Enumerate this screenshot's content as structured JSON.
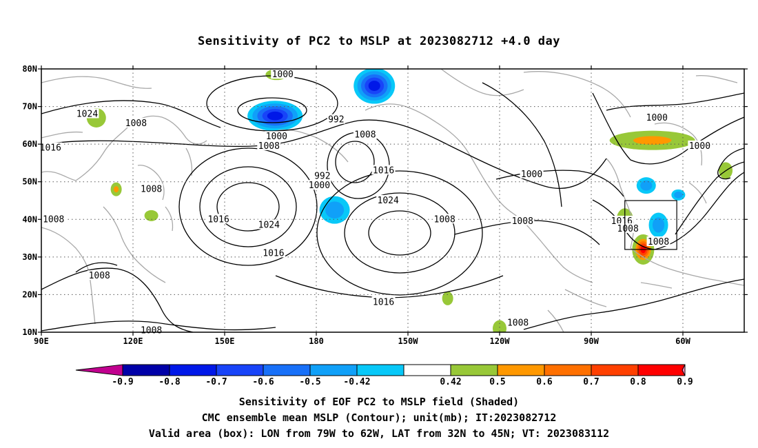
{
  "title": "Sensitivity of PC2 to MSLP at 2023082712 +4.0 day",
  "axes": {
    "lat_labels": [
      "80N",
      "70N",
      "60N",
      "50N",
      "40N",
      "30N",
      "20N",
      "10N"
    ],
    "lon_labels": [
      "90E",
      "120E",
      "150E",
      "180",
      "150W",
      "120W",
      "90W",
      "60W"
    ]
  },
  "contours": {
    "unit": "mb",
    "labels": [
      {
        "text": "1000",
        "lon": 169,
        "lat": 78.5
      },
      {
        "text": "992",
        "lon": -173.5,
        "lat": 66.5
      },
      {
        "text": "1024",
        "lon": 105,
        "lat": 68
      },
      {
        "text": "1008",
        "lon": 121,
        "lat": 65.5
      },
      {
        "text": "1000",
        "lon": 167,
        "lat": 62
      },
      {
        "text": "1008",
        "lon": 164.5,
        "lat": 59.5
      },
      {
        "text": "1016",
        "lon": 93,
        "lat": 59
      },
      {
        "text": "1008",
        "lon": -164,
        "lat": 62.5
      },
      {
        "text": "992",
        "lon": -178,
        "lat": 51.5
      },
      {
        "text": "1000",
        "lon": -179,
        "lat": 49
      },
      {
        "text": "1016",
        "lon": -158,
        "lat": 53
      },
      {
        "text": "1024",
        "lon": -156.5,
        "lat": 45
      },
      {
        "text": "1008",
        "lon": 126,
        "lat": 48
      },
      {
        "text": "1024",
        "lon": 164.5,
        "lat": 38.5
      },
      {
        "text": "1016",
        "lon": 148,
        "lat": 40
      },
      {
        "text": "1008",
        "lon": 94,
        "lat": 40
      },
      {
        "text": "1016",
        "lon": 166,
        "lat": 31
      },
      {
        "text": "1008",
        "lon": 109,
        "lat": 25
      },
      {
        "text": "1016",
        "lon": -158,
        "lat": 18
      },
      {
        "text": "1008",
        "lon": 126,
        "lat": 10.5
      },
      {
        "text": "1008",
        "lon": -138,
        "lat": 40
      },
      {
        "text": "1008",
        "lon": -112.5,
        "lat": 39.5
      },
      {
        "text": "1000",
        "lon": -109.5,
        "lat": 52
      },
      {
        "text": "1008",
        "lon": -114,
        "lat": 12.5
      },
      {
        "text": "1000",
        "lon": -68.5,
        "lat": 67
      },
      {
        "text": "1000",
        "lon": -54.5,
        "lat": 59.5
      },
      {
        "text": "1016",
        "lon": -80,
        "lat": 39.5
      },
      {
        "text": "1008",
        "lon": -78,
        "lat": 37.5
      },
      {
        "text": "1008",
        "lon": -68,
        "lat": 34
      }
    ]
  },
  "shading": {
    "blobs": [
      {
        "lon": 166.5,
        "lat": 67.5,
        "value": -0.8
      },
      {
        "lon": -161,
        "lat": 75.5,
        "value": -0.8
      },
      {
        "lon": -174,
        "lat": 42.5,
        "value": -0.5
      },
      {
        "lon": 167,
        "lat": 78.5,
        "value": 0.5
      },
      {
        "lon": 108,
        "lat": 67,
        "value": 0.5
      },
      {
        "lon": 114.5,
        "lat": 48,
        "value": 0.6
      },
      {
        "lon": 126,
        "lat": 41,
        "value": 0.5
      },
      {
        "lon": -137,
        "lat": 19,
        "value": 0.5
      },
      {
        "lon": -120,
        "lat": 11,
        "value": 0.5
      },
      {
        "lon": -70,
        "lat": 61,
        "value": 0.6
      },
      {
        "lon": -73,
        "lat": 32,
        "value": 0.9
      },
      {
        "lon": -79,
        "lat": 40,
        "value": 0.5
      },
      {
        "lon": -68,
        "lat": 38.5,
        "value": -0.5
      },
      {
        "lon": -72,
        "lat": 49,
        "value": -0.5
      },
      {
        "lon": -61.5,
        "lat": 46.5,
        "value": -0.5
      },
      {
        "lon": -46,
        "lat": 53,
        "value": 0.5
      }
    ]
  },
  "colorbar": {
    "ticks": [
      "-0.9",
      "-0.8",
      "-0.7",
      "-0.6",
      "-0.5",
      "-0.42",
      "0.42",
      "0.5",
      "0.6",
      "0.7",
      "0.8",
      "0.9"
    ],
    "colors": [
      "#c1008f",
      "#0000a8",
      "#0018e8",
      "#1844f8",
      "#1870f8",
      "#10a0f8",
      "#08c8f8",
      "#ffffff",
      "#98c838",
      "#ff9800",
      "#ff7000",
      "#ff4000",
      "#ff0000",
      "#ff90c0"
    ]
  },
  "valid_box": {
    "lon_min": -79,
    "lon_max": -62,
    "lat_min": 32,
    "lat_max": 45
  },
  "captions": {
    "line1": "Sensitivity of EOF PC2 to MSLP field (Shaded)",
    "line2": "CMC ensemble mean MSLP (Contour); unit(mb); IT:2023082712",
    "line3": "Valid area (box): LON from 79W to 62W, LAT from 32N to 45N; VT: 2023083112"
  }
}
